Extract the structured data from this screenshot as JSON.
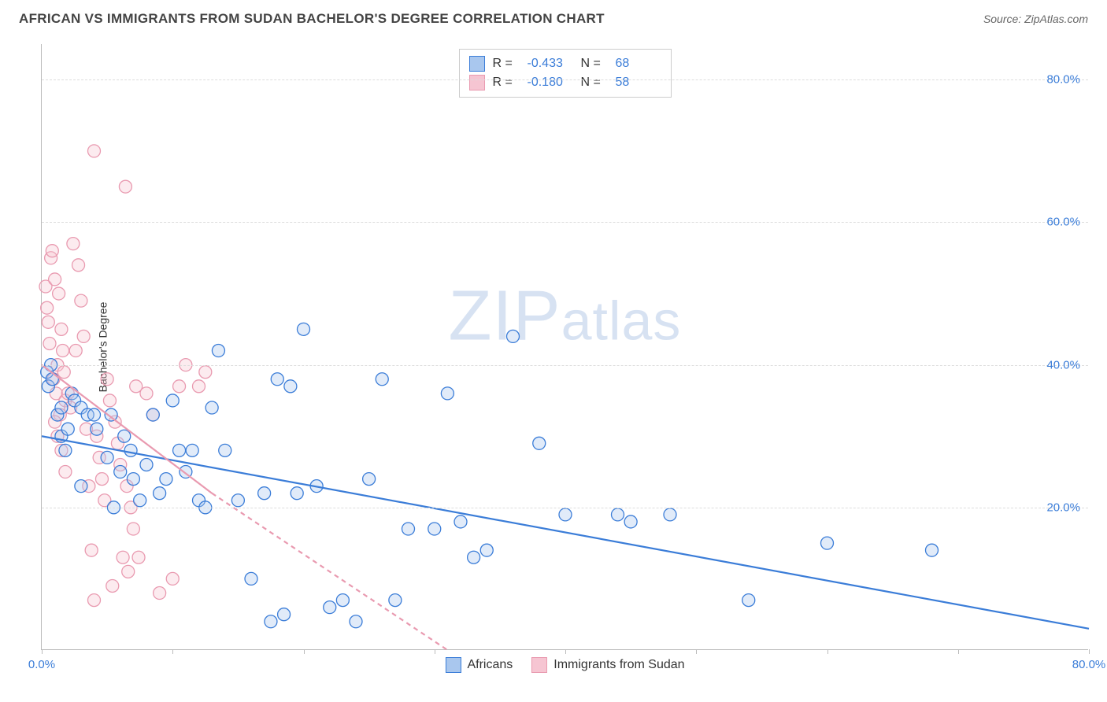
{
  "header": {
    "title": "AFRICAN VS IMMIGRANTS FROM SUDAN BACHELOR'S DEGREE CORRELATION CHART",
    "source_prefix": "Source: ",
    "source_name": "ZipAtlas.com"
  },
  "watermark": {
    "part1": "ZIP",
    "part2": "atlas"
  },
  "chart": {
    "type": "scatter",
    "ylabel": "Bachelor's Degree",
    "xlim": [
      0,
      80
    ],
    "ylim": [
      0,
      85
    ],
    "background_color": "#ffffff",
    "grid_color": "#dddddd",
    "axis_color": "#bbbbbb",
    "tick_label_color": "#3b7dd8",
    "tick_fontsize": 15,
    "label_fontsize": 14,
    "marker_radius": 8,
    "marker_fill_opacity": 0.35,
    "line_width": 2.2,
    "y_ticks": [
      {
        "value": 20,
        "label": "20.0%"
      },
      {
        "value": 40,
        "label": "40.0%"
      },
      {
        "value": 60,
        "label": "60.0%"
      },
      {
        "value": 80,
        "label": "80.0%"
      }
    ],
    "x_ticks": [
      {
        "value": 0,
        "label": "0.0%"
      },
      {
        "value": 10,
        "label": ""
      },
      {
        "value": 20,
        "label": ""
      },
      {
        "value": 30,
        "label": ""
      },
      {
        "value": 40,
        "label": ""
      },
      {
        "value": 50,
        "label": ""
      },
      {
        "value": 60,
        "label": ""
      },
      {
        "value": 70,
        "label": ""
      },
      {
        "value": 80,
        "label": "80.0%"
      }
    ],
    "series": [
      {
        "name": "Africans",
        "color_stroke": "#3b7dd8",
        "color_fill": "#a9c7ee",
        "legend_label": "Africans",
        "r_value": "-0.433",
        "n_value": "68",
        "trend": {
          "x1": 0,
          "y1": 30,
          "x2": 80,
          "y2": 3,
          "dash": ""
        },
        "points": [
          [
            0.4,
            39
          ],
          [
            0.5,
            37
          ],
          [
            0.7,
            40
          ],
          [
            0.8,
            38
          ],
          [
            1.2,
            33
          ],
          [
            1.5,
            30
          ],
          [
            1.8,
            28
          ],
          [
            1.5,
            34
          ],
          [
            2.0,
            31
          ],
          [
            2.3,
            36
          ],
          [
            2.5,
            35
          ],
          [
            3.0,
            34
          ],
          [
            3.5,
            33
          ],
          [
            3.0,
            23
          ],
          [
            4.0,
            33
          ],
          [
            4.2,
            31
          ],
          [
            5.0,
            27
          ],
          [
            5.3,
            33
          ],
          [
            5.5,
            20
          ],
          [
            6.0,
            25
          ],
          [
            6.3,
            30
          ],
          [
            6.8,
            28
          ],
          [
            7.0,
            24
          ],
          [
            7.5,
            21
          ],
          [
            8.0,
            26
          ],
          [
            8.5,
            33
          ],
          [
            9.0,
            22
          ],
          [
            9.5,
            24
          ],
          [
            10.0,
            35
          ],
          [
            10.5,
            28
          ],
          [
            11.0,
            25
          ],
          [
            11.5,
            28
          ],
          [
            12.0,
            21
          ],
          [
            12.5,
            20
          ],
          [
            13.0,
            34
          ],
          [
            13.5,
            42
          ],
          [
            14.0,
            28
          ],
          [
            15.0,
            21
          ],
          [
            16.0,
            10
          ],
          [
            17.0,
            22
          ],
          [
            17.5,
            4
          ],
          [
            18.0,
            38
          ],
          [
            18.5,
            5
          ],
          [
            19.0,
            37
          ],
          [
            19.5,
            22
          ],
          [
            20.0,
            45
          ],
          [
            21.0,
            23
          ],
          [
            22.0,
            6
          ],
          [
            23.0,
            7
          ],
          [
            24.0,
            4
          ],
          [
            25.0,
            24
          ],
          [
            26.0,
            38
          ],
          [
            27.0,
            7
          ],
          [
            28.0,
            17
          ],
          [
            30.0,
            17
          ],
          [
            31.0,
            36
          ],
          [
            32.0,
            18
          ],
          [
            33.0,
            13
          ],
          [
            34.0,
            14
          ],
          [
            36.0,
            44
          ],
          [
            38.0,
            29
          ],
          [
            40.0,
            19
          ],
          [
            44.0,
            19
          ],
          [
            45.0,
            18
          ],
          [
            48.0,
            19
          ],
          [
            54.0,
            7
          ],
          [
            60.0,
            15
          ],
          [
            68.0,
            14
          ]
        ]
      },
      {
        "name": "Immigrants from Sudan",
        "color_stroke": "#e99ab0",
        "color_fill": "#f6c5d2",
        "legend_label": "Immigrants from Sudan",
        "r_value": "-0.180",
        "n_value": "58",
        "trend": {
          "x1": 0,
          "y1": 40,
          "x2": 13,
          "y2": 22,
          "dash": ""
        },
        "trend_ext": {
          "x1": 13,
          "y1": 22,
          "x2": 31,
          "y2": 0,
          "dash": "6,5"
        },
        "points": [
          [
            0.3,
            51
          ],
          [
            0.4,
            48
          ],
          [
            0.5,
            46
          ],
          [
            0.6,
            43
          ],
          [
            0.7,
            55
          ],
          [
            0.8,
            56
          ],
          [
            0.9,
            38
          ],
          [
            1.0,
            52
          ],
          [
            1.1,
            36
          ],
          [
            1.2,
            40
          ],
          [
            1.3,
            50
          ],
          [
            1.4,
            33
          ],
          [
            1.5,
            45
          ],
          [
            1.6,
            42
          ],
          [
            1.7,
            39
          ],
          [
            1.8,
            35
          ],
          [
            1.0,
            32
          ],
          [
            1.2,
            30
          ],
          [
            1.5,
            28
          ],
          [
            1.8,
            25
          ],
          [
            2.0,
            36
          ],
          [
            2.2,
            34
          ],
          [
            2.4,
            57
          ],
          [
            2.6,
            42
          ],
          [
            2.8,
            54
          ],
          [
            3.0,
            49
          ],
          [
            3.2,
            44
          ],
          [
            3.4,
            31
          ],
          [
            3.6,
            23
          ],
          [
            3.8,
            14
          ],
          [
            4.0,
            7
          ],
          [
            4.0,
            70
          ],
          [
            4.2,
            30
          ],
          [
            4.4,
            27
          ],
          [
            4.6,
            24
          ],
          [
            4.8,
            21
          ],
          [
            5.0,
            38
          ],
          [
            5.2,
            35
          ],
          [
            5.4,
            9
          ],
          [
            5.6,
            32
          ],
          [
            5.8,
            29
          ],
          [
            6.0,
            26
          ],
          [
            6.2,
            13
          ],
          [
            6.4,
            65
          ],
          [
            6.5,
            23
          ],
          [
            6.6,
            11
          ],
          [
            6.8,
            20
          ],
          [
            7.0,
            17
          ],
          [
            7.2,
            37
          ],
          [
            7.4,
            13
          ],
          [
            8.0,
            36
          ],
          [
            8.5,
            33
          ],
          [
            9.0,
            8
          ],
          [
            10.0,
            10
          ],
          [
            10.5,
            37
          ],
          [
            11.0,
            40
          ],
          [
            12.0,
            37
          ],
          [
            12.5,
            39
          ]
        ]
      }
    ],
    "legend_top": {
      "r_label": "R =",
      "n_label": "N ="
    }
  }
}
